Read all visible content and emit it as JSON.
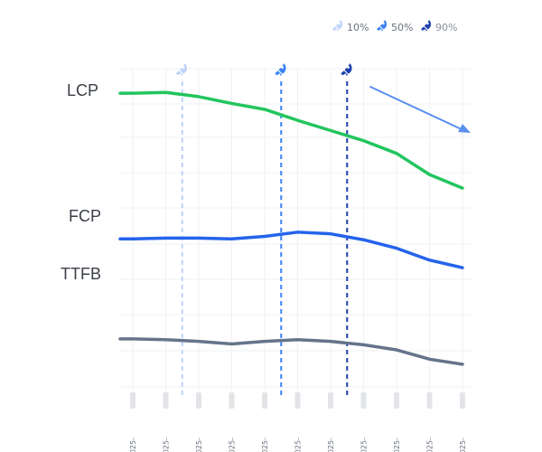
{
  "colors": {
    "lcp": "#22c55e",
    "fcp": "#2563eb",
    "ttfb": "#64748b",
    "p10": "#bfd3fb",
    "p50": "#3b82f6",
    "p90": "#1e40af",
    "trend_arrow": "#5b8ff0",
    "grid": "#eef0f3"
  },
  "chart_data": {
    "type": "line",
    "x_tick_labels": [
      "2025-",
      "2025-",
      "2025-",
      "2025-",
      "2025-",
      "2025-",
      "2025-",
      "2025-",
      "2025-",
      "2025-",
      "2025-"
    ],
    "series": [
      {
        "name": "LCP",
        "values": [
          8.05,
          8.1,
          7.85,
          7.45,
          7.1,
          6.45,
          5.85,
          5.25,
          4.5,
          3.25,
          2.45
        ]
      },
      {
        "name": "FCP",
        "values": [
          -0.55,
          -0.5,
          -0.5,
          -0.55,
          -0.4,
          -0.15,
          -0.25,
          -0.6,
          -1.1,
          -1.8,
          -2.25
        ]
      },
      {
        "name": "TTFB",
        "values": [
          -6.45,
          -6.5,
          -6.6,
          -6.75,
          -6.6,
          -6.5,
          -6.6,
          -6.8,
          -7.1,
          -7.65,
          -7.95
        ]
      }
    ],
    "ylim": [
      -9.5,
      9.5
    ],
    "grid": true,
    "markers": [
      {
        "name": "10%",
        "x_index": 1.5,
        "icon": "rocket-icon",
        "color_key": "p10"
      },
      {
        "name": "50%",
        "x_index": 4.5,
        "icon": "rocket-icon",
        "color_key": "p50"
      },
      {
        "name": "90%",
        "x_index": 6.5,
        "icon": "rocket-icon",
        "color_key": "p90"
      }
    ],
    "legend": {
      "position": "top-right",
      "entries": [
        "10%",
        "50%",
        "90%"
      ]
    },
    "trend": "down"
  }
}
